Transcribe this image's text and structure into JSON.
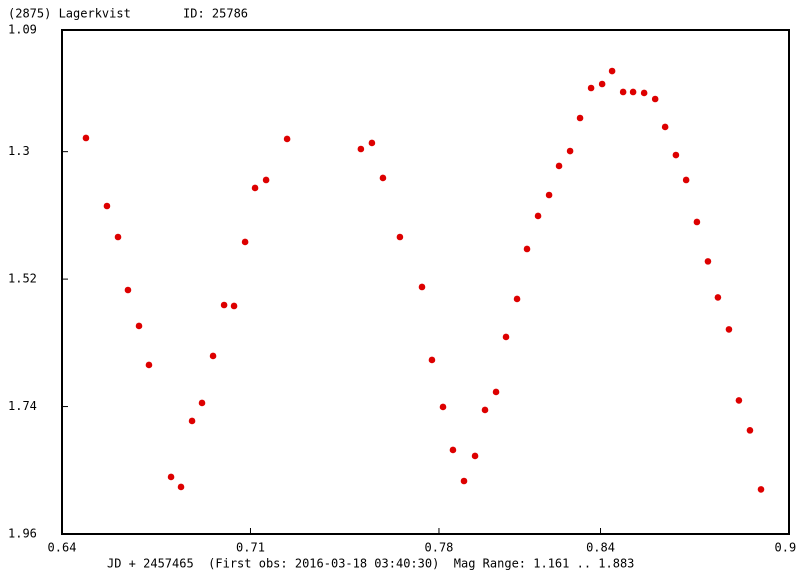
{
  "chart_data": {
    "type": "scatter",
    "title": "(2875) Lagerkvist",
    "subtitle": "ID: 25786",
    "x_label": "JD + 2457465  (First obs: 2016-03-18 03:40:30)  Mag Range: 1.161 .. 1.883",
    "color": "#dd0000",
    "y_inverted": true,
    "xlim": [
      0.64,
      0.91
    ],
    "xticks": [
      0.64,
      0.71,
      0.78,
      0.84,
      0.91
    ],
    "ylim": [
      1.09,
      1.96
    ],
    "yticks": [
      1.09,
      1.3,
      1.52,
      1.74,
      1.96
    ],
    "x": [
      0.6489,
      0.6567,
      0.6608,
      0.6645,
      0.6686,
      0.6723,
      0.6805,
      0.6842,
      0.6883,
      0.692,
      0.6961,
      0.7002,
      0.7039,
      0.708,
      0.7117,
      0.7158,
      0.7236,
      0.751,
      0.7551,
      0.7592,
      0.7655,
      0.7737,
      0.7774,
      0.7815,
      0.7852,
      0.7893,
      0.7934,
      0.7971,
      0.8012,
      0.8049,
      0.809,
      0.8127,
      0.8168,
      0.8209,
      0.8246,
      0.8287,
      0.8324,
      0.8365,
      0.8406,
      0.8443,
      0.8484,
      0.8521,
      0.8562,
      0.8603,
      0.864,
      0.868,
      0.8718,
      0.8758,
      0.8799,
      0.8836,
      0.8877,
      0.8914,
      0.8955,
      0.8996
    ],
    "values": [
      1.2764,
      1.3938,
      1.4473,
      1.5388,
      1.6009,
      1.6682,
      1.8615,
      1.8788,
      1.7649,
      1.7338,
      1.6527,
      1.5647,
      1.5664,
      1.4559,
      1.3627,
      1.3489,
      1.2781,
      1.2954,
      1.285,
      1.3454,
      1.4473,
      1.5336,
      1.6596,
      1.7407,
      1.8149,
      1.8685,
      1.8253,
      1.7459,
      1.7148,
      1.6199,
      1.5543,
      1.468,
      1.411,
      1.3748,
      1.3247,
      1.2989,
      1.2419,
      1.1901,
      1.1832,
      1.1608,
      1.197,
      1.197,
      1.1987,
      1.2091,
      1.2574,
      1.3058,
      1.3489,
      1.4214,
      1.4894,
      1.5516,
      1.6068,
      1.7294,
      1.7811,
      1.883
    ]
  }
}
